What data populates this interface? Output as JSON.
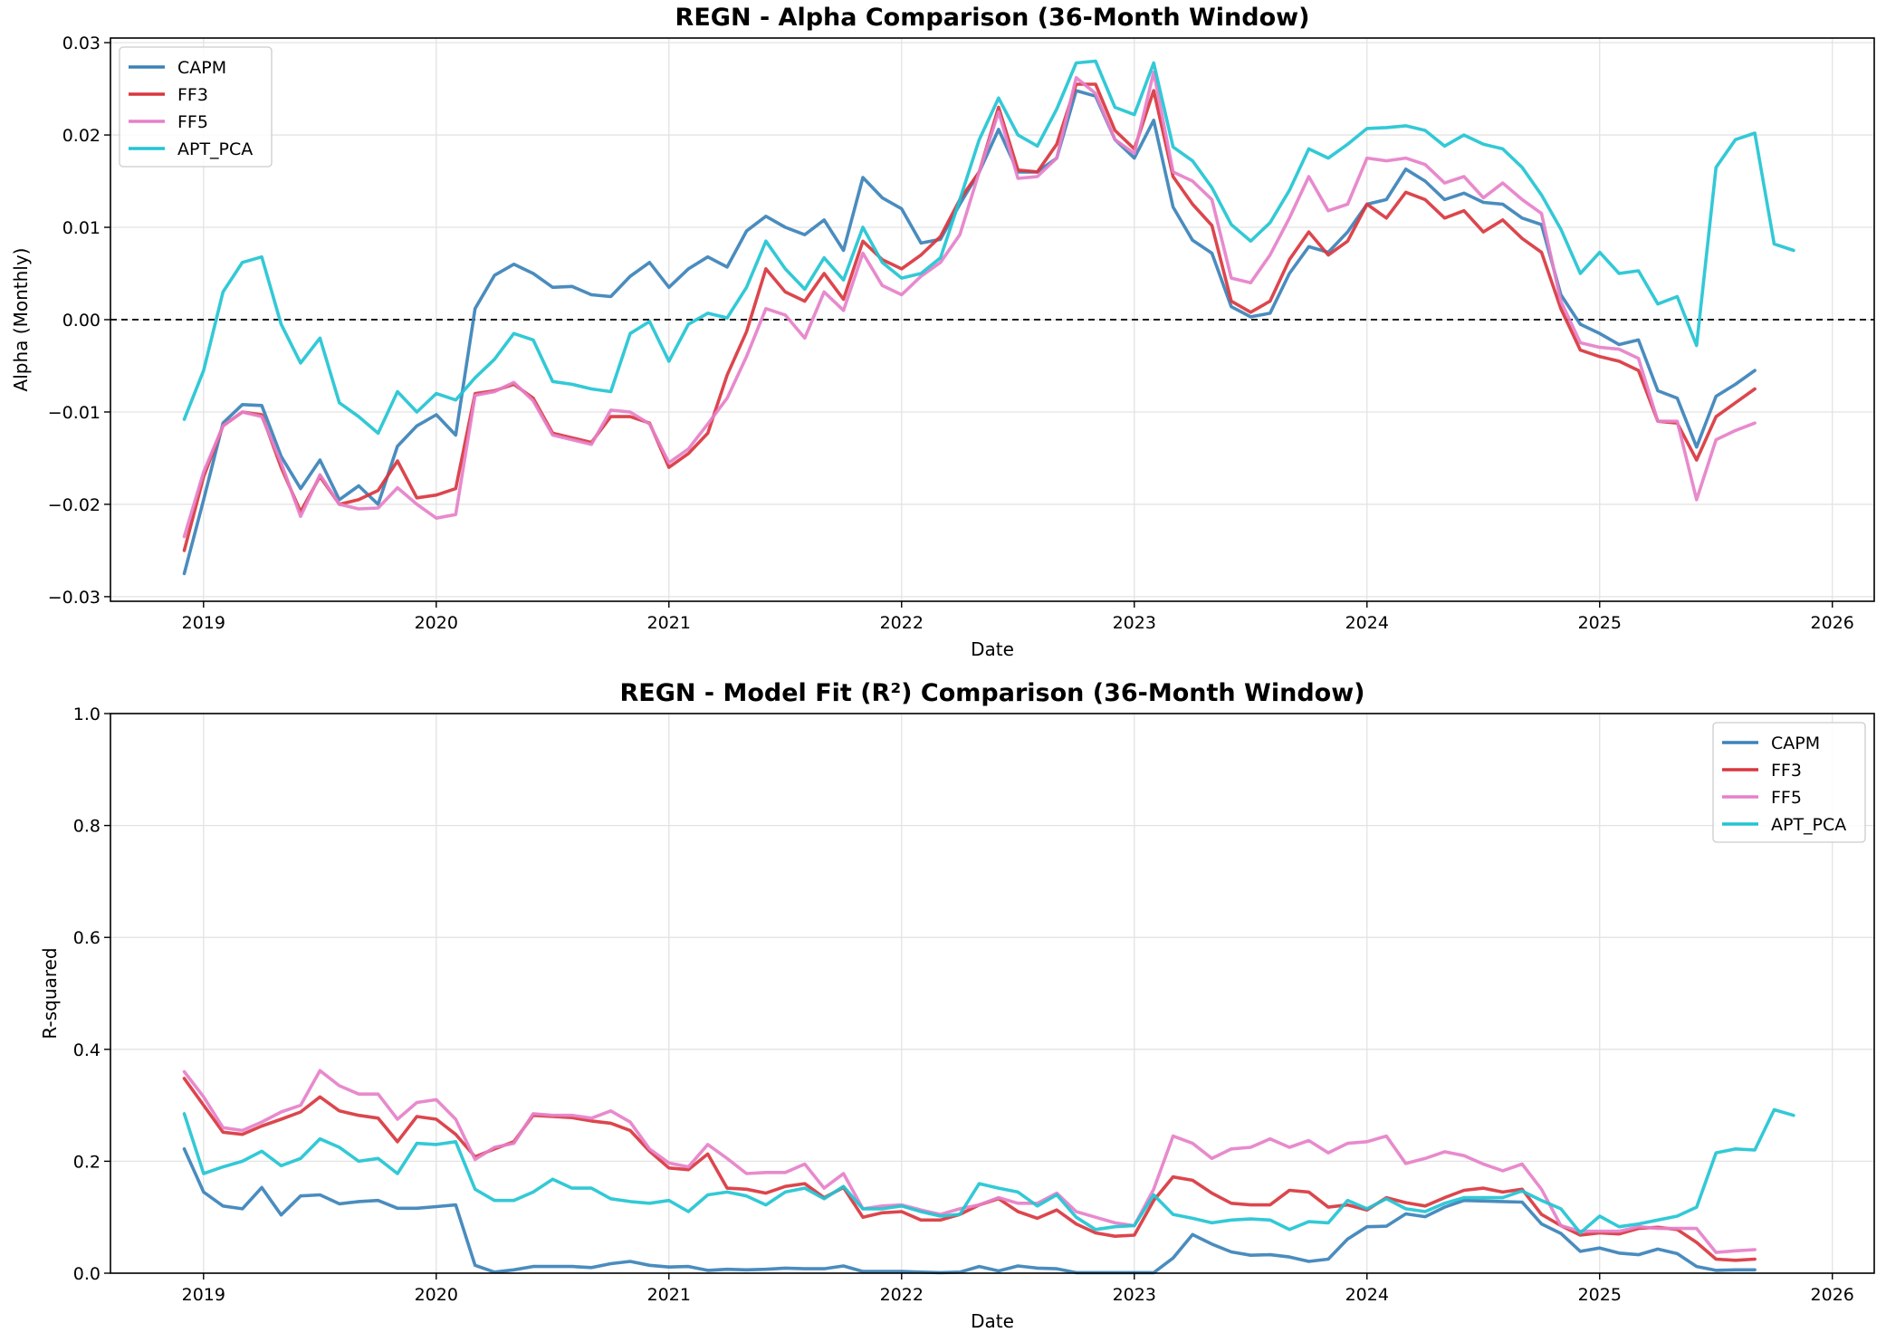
{
  "colors": {
    "CAPM": "#3b82b9",
    "FF3": "#d9363e",
    "FF5": "#e680c9",
    "APT_PCA": "#22c4d2"
  },
  "chart_data": [
    {
      "type": "line",
      "title": "REGN - Alpha Comparison (36-Month Window)",
      "xlabel": "Date",
      "ylabel": "Alpha (Monthly)",
      "xlim": [
        2018.6,
        2026.18
      ],
      "ylim": [
        -0.0305,
        0.0305
      ],
      "x_ticks": [
        2019,
        2020,
        2021,
        2022,
        2023,
        2024,
        2025,
        2026
      ],
      "x_tick_labels": [
        "2019",
        "2020",
        "2021",
        "2022",
        "2023",
        "2024",
        "2025",
        "2026"
      ],
      "y_ticks": [
        -0.03,
        -0.02,
        -0.01,
        0.0,
        0.01,
        0.02,
        0.03
      ],
      "y_tick_labels": [
        "−0.03",
        "−0.02",
        "−0.01",
        "0.00",
        "0.01",
        "0.02",
        "0.03"
      ],
      "grid": true,
      "legend_position": "top-left",
      "reference_line": 0.0,
      "x_start": 2018.917,
      "x_step": 0.08333,
      "series": [
        {
          "name": "CAPM",
          "values": [
            -0.0275,
            -0.0195,
            -0.0112,
            -0.0092,
            -0.0093,
            -0.0148,
            -0.0183,
            -0.0152,
            -0.0195,
            -0.018,
            -0.02,
            -0.0137,
            -0.0115,
            -0.0103,
            -0.0125,
            0.0012,
            0.0048,
            0.006,
            0.005,
            0.0035,
            0.0036,
            0.0027,
            0.0025,
            0.0047,
            0.0062,
            0.0035,
            0.0055,
            0.0068,
            0.0057,
            0.0096,
            0.0112,
            0.01,
            0.0092,
            0.0108,
            0.0075,
            0.0154,
            0.0132,
            0.012,
            0.0083,
            0.0087,
            0.0125,
            0.016,
            0.0206,
            0.016,
            0.016,
            0.0175,
            0.0248,
            0.0242,
            0.0195,
            0.0175,
            0.0216,
            0.0122,
            0.0086,
            0.0072,
            0.0014,
            0.0003,
            0.0007,
            0.005,
            0.0079,
            0.0073,
            0.0095,
            0.0125,
            0.013,
            0.0163,
            0.015,
            0.013,
            0.0137,
            0.0127,
            0.0125,
            0.011,
            0.0103,
            0.0027,
            -0.0005,
            -0.0015,
            -0.0027,
            -0.0022,
            -0.0077,
            -0.0085,
            -0.0138,
            -0.0083,
            -0.007,
            -0.0055
          ]
        },
        {
          "name": "FF3",
          "values": [
            -0.025,
            -0.017,
            -0.0115,
            -0.01,
            -0.0103,
            -0.016,
            -0.0208,
            -0.017,
            -0.02,
            -0.0195,
            -0.0185,
            -0.0153,
            -0.0193,
            -0.019,
            -0.0183,
            -0.008,
            -0.0077,
            -0.007,
            -0.0085,
            -0.0123,
            -0.0128,
            -0.0133,
            -0.0105,
            -0.0105,
            -0.0112,
            -0.016,
            -0.0145,
            -0.0123,
            -0.006,
            -0.0013,
            0.0055,
            0.003,
            0.002,
            0.005,
            0.0022,
            0.0085,
            0.0065,
            0.0055,
            0.007,
            0.009,
            0.013,
            0.016,
            0.023,
            0.0162,
            0.016,
            0.019,
            0.0255,
            0.0255,
            0.0205,
            0.0185,
            0.0248,
            0.0155,
            0.0125,
            0.0102,
            0.002,
            0.0008,
            0.002,
            0.0065,
            0.0095,
            0.007,
            0.0085,
            0.0125,
            0.011,
            0.0138,
            0.013,
            0.011,
            0.0118,
            0.0095,
            0.0108,
            0.0088,
            0.0073,
            0.0012,
            -0.0033,
            -0.004,
            -0.0045,
            -0.0055,
            -0.011,
            -0.0112,
            -0.0152,
            -0.0105,
            -0.009,
            -0.0075
          ]
        },
        {
          "name": "FF5",
          "values": [
            -0.0235,
            -0.0165,
            -0.0115,
            -0.01,
            -0.0105,
            -0.0155,
            -0.0213,
            -0.0168,
            -0.02,
            -0.0205,
            -0.0204,
            -0.0182,
            -0.02,
            -0.0215,
            -0.0211,
            -0.0082,
            -0.0078,
            -0.0068,
            -0.0088,
            -0.0125,
            -0.013,
            -0.0135,
            -0.0098,
            -0.01,
            -0.0113,
            -0.0155,
            -0.014,
            -0.0113,
            -0.0085,
            -0.004,
            0.0012,
            0.0005,
            -0.002,
            0.003,
            0.001,
            0.0072,
            0.0037,
            0.0027,
            0.0047,
            0.0062,
            0.0092,
            0.016,
            0.0225,
            0.0153,
            0.0155,
            0.0175,
            0.0262,
            0.0245,
            0.0195,
            0.018,
            0.0268,
            0.016,
            0.015,
            0.013,
            0.0045,
            0.004,
            0.007,
            0.011,
            0.0155,
            0.0118,
            0.0125,
            0.0175,
            0.0172,
            0.0175,
            0.0168,
            0.0148,
            0.0155,
            0.0132,
            0.0148,
            0.013,
            0.0115,
            0.002,
            -0.0025,
            -0.003,
            -0.0032,
            -0.0042,
            -0.011,
            -0.011,
            -0.0195,
            -0.013,
            -0.012,
            -0.0112
          ]
        },
        {
          "name": "APT_PCA",
          "values": [
            -0.0108,
            -0.0055,
            0.003,
            0.0062,
            0.0068,
            -0.0005,
            -0.0047,
            -0.002,
            -0.009,
            -0.0105,
            -0.0123,
            -0.0078,
            -0.01,
            -0.008,
            -0.0087,
            -0.0063,
            -0.0043,
            -0.0015,
            -0.0022,
            -0.0067,
            -0.007,
            -0.0075,
            -0.0078,
            -0.0015,
            -0.0002,
            -0.0045,
            -0.0005,
            0.0007,
            0.0002,
            0.0035,
            0.0085,
            0.0055,
            0.0033,
            0.0067,
            0.0043,
            0.01,
            0.0062,
            0.0045,
            0.005,
            0.0067,
            0.013,
            0.0195,
            0.024,
            0.02,
            0.0188,
            0.0228,
            0.0278,
            0.028,
            0.023,
            0.0222,
            0.0278,
            0.0187,
            0.0172,
            0.0143,
            0.0103,
            0.0085,
            0.0105,
            0.014,
            0.0185,
            0.0175,
            0.019,
            0.0207,
            0.0208,
            0.021,
            0.0205,
            0.0188,
            0.02,
            0.019,
            0.0185,
            0.0165,
            0.0135,
            0.0098,
            0.005,
            0.0073,
            0.005,
            0.0053,
            0.0017,
            0.0025,
            -0.0028,
            0.0165,
            0.0195,
            0.0202,
            0.0082,
            0.0075
          ]
        }
      ]
    },
    {
      "type": "line",
      "title": "REGN - Model Fit (R²) Comparison (36-Month Window)",
      "xlabel": "Date",
      "ylabel": "R-squared",
      "xlim": [
        2018.6,
        2026.18
      ],
      "ylim": [
        0.0,
        1.0
      ],
      "x_ticks": [
        2019,
        2020,
        2021,
        2022,
        2023,
        2024,
        2025,
        2026
      ],
      "x_tick_labels": [
        "2019",
        "2020",
        "2021",
        "2022",
        "2023",
        "2024",
        "2025",
        "2026"
      ],
      "y_ticks": [
        0.0,
        0.2,
        0.4,
        0.6,
        0.8,
        1.0
      ],
      "y_tick_labels": [
        "0.0",
        "0.2",
        "0.4",
        "0.6",
        "0.8",
        "1.0"
      ],
      "grid": true,
      "legend_position": "top-right",
      "x_start": 2018.917,
      "x_step": 0.08333,
      "series": [
        {
          "name": "CAPM",
          "values": [
            0.222,
            0.145,
            0.12,
            0.115,
            0.153,
            0.104,
            0.138,
            0.14,
            0.124,
            0.128,
            0.13,
            0.116,
            0.116,
            0.119,
            0.122,
            0.014,
            0.002,
            0.006,
            0.012,
            0.012,
            0.012,
            0.01,
            0.017,
            0.021,
            0.014,
            0.011,
            0.012,
            0.005,
            0.007,
            0.006,
            0.007,
            0.009,
            0.008,
            0.008,
            0.013,
            0.003,
            0.003,
            0.003,
            0.002,
            0.001,
            0.002,
            0.012,
            0.004,
            0.013,
            0.009,
            0.008,
            0.001,
            0.001,
            0.001,
            0.001,
            0.001,
            0.027,
            0.069,
            0.052,
            0.038,
            0.032,
            0.033,
            0.029,
            0.021,
            0.025,
            0.061,
            0.083,
            0.084,
            0.106,
            0.101,
            0.118,
            0.13,
            0.129,
            0.128,
            0.127,
            0.088,
            0.071,
            0.039,
            0.045,
            0.036,
            0.033,
            0.043,
            0.035,
            0.012,
            0.005,
            0.006,
            0.006
          ]
        },
        {
          "name": "FF3",
          "values": [
            0.348,
            0.3,
            0.252,
            0.248,
            0.263,
            0.275,
            0.288,
            0.315,
            0.29,
            0.282,
            0.277,
            0.235,
            0.28,
            0.275,
            0.248,
            0.208,
            0.222,
            0.235,
            0.282,
            0.28,
            0.278,
            0.272,
            0.268,
            0.255,
            0.218,
            0.188,
            0.185,
            0.213,
            0.152,
            0.15,
            0.143,
            0.155,
            0.16,
            0.135,
            0.153,
            0.1,
            0.108,
            0.11,
            0.095,
            0.095,
            0.105,
            0.122,
            0.133,
            0.11,
            0.098,
            0.113,
            0.088,
            0.072,
            0.066,
            0.068,
            0.13,
            0.172,
            0.166,
            0.143,
            0.125,
            0.122,
            0.122,
            0.148,
            0.145,
            0.118,
            0.122,
            0.113,
            0.135,
            0.126,
            0.12,
            0.135,
            0.148,
            0.152,
            0.145,
            0.15,
            0.105,
            0.085,
            0.068,
            0.072,
            0.07,
            0.08,
            0.082,
            0.078,
            0.055,
            0.025,
            0.023,
            0.025
          ]
        },
        {
          "name": "FF5",
          "values": [
            0.36,
            0.315,
            0.26,
            0.255,
            0.27,
            0.288,
            0.3,
            0.362,
            0.335,
            0.32,
            0.32,
            0.275,
            0.305,
            0.31,
            0.275,
            0.203,
            0.225,
            0.232,
            0.285,
            0.282,
            0.282,
            0.277,
            0.29,
            0.27,
            0.222,
            0.197,
            0.19,
            0.23,
            0.205,
            0.178,
            0.18,
            0.18,
            0.195,
            0.152,
            0.178,
            0.115,
            0.12,
            0.122,
            0.113,
            0.105,
            0.115,
            0.122,
            0.135,
            0.125,
            0.125,
            0.143,
            0.11,
            0.1,
            0.09,
            0.085,
            0.15,
            0.245,
            0.232,
            0.205,
            0.222,
            0.225,
            0.24,
            0.225,
            0.237,
            0.215,
            0.232,
            0.235,
            0.245,
            0.196,
            0.205,
            0.217,
            0.21,
            0.195,
            0.183,
            0.195,
            0.15,
            0.085,
            0.075,
            0.075,
            0.075,
            0.083,
            0.08,
            0.08,
            0.08,
            0.037,
            0.04,
            0.042
          ]
        },
        {
          "name": "APT_PCA",
          "values": [
            0.285,
            0.178,
            0.19,
            0.2,
            0.218,
            0.192,
            0.205,
            0.24,
            0.225,
            0.2,
            0.205,
            0.178,
            0.232,
            0.23,
            0.235,
            0.15,
            0.13,
            0.13,
            0.145,
            0.168,
            0.152,
            0.152,
            0.133,
            0.128,
            0.125,
            0.13,
            0.11,
            0.14,
            0.145,
            0.138,
            0.122,
            0.145,
            0.152,
            0.133,
            0.155,
            0.115,
            0.115,
            0.12,
            0.11,
            0.102,
            0.105,
            0.16,
            0.152,
            0.145,
            0.12,
            0.14,
            0.1,
            0.078,
            0.083,
            0.085,
            0.14,
            0.105,
            0.098,
            0.09,
            0.095,
            0.097,
            0.095,
            0.078,
            0.092,
            0.09,
            0.13,
            0.115,
            0.133,
            0.115,
            0.11,
            0.125,
            0.135,
            0.135,
            0.135,
            0.147,
            0.13,
            0.115,
            0.072,
            0.102,
            0.083,
            0.088,
            0.095,
            0.102,
            0.118,
            0.215,
            0.222,
            0.22,
            0.292,
            0.282
          ]
        }
      ]
    }
  ]
}
